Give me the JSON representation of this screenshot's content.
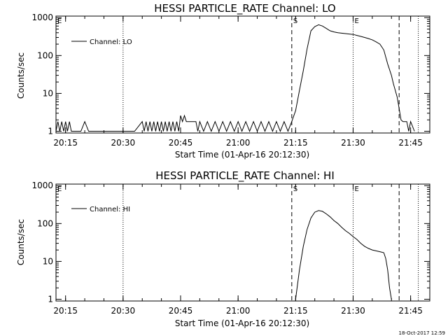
{
  "stamp": "18-Oct-2017 12:59",
  "chart_data": [
    {
      "type": "line",
      "title": "HESSI PARTICLE_RATE Channel: LO",
      "xlabel": "Start Time (01-Apr-16 20:12:30)",
      "ylabel": "Counts/sec",
      "yscale": "log",
      "ylim": [
        0.9,
        1100
      ],
      "xlim": [
        "20:12:30",
        "21:50:00"
      ],
      "x_ticks": [
        "20:15",
        "20:30",
        "20:45",
        "21:00",
        "21:15",
        "21:30",
        "21:45"
      ],
      "y_ticks": [
        "1",
        "10",
        "100",
        "1000"
      ],
      "legend": {
        "position": "top-left",
        "entries": [
          "Channel: LO"
        ]
      },
      "markers": {
        "dotted": [
          "20:30",
          "21:30",
          "21:47"
        ],
        "dashed": [
          "21:14",
          "21:42"
        ],
        "letters": [
          {
            "text": "E",
            "at": "20:12:30"
          },
          {
            "text": "S",
            "at": "21:14"
          },
          {
            "text": "E",
            "at": "21:30"
          }
        ]
      },
      "series": [
        {
          "name": "Channel: LO",
          "x": [
            "20:12:30",
            "20:13:00",
            "20:13:30",
            "20:14:00",
            "20:14:30",
            "20:15:00",
            "20:15:30",
            "20:16:00",
            "20:16:30",
            "20:17:00",
            "20:17:30",
            "20:18:00",
            "20:19:00",
            "20:20:00",
            "20:21:00",
            "20:21:30",
            "20:22:00",
            "20:23:00",
            "20:25:00",
            "20:29:00",
            "20:33:00",
            "20:35:00",
            "20:35:30",
            "20:36:00",
            "20:36:30",
            "20:37:00",
            "20:37:30",
            "20:38:00",
            "20:38:30",
            "20:39:00",
            "20:39:30",
            "20:40:00",
            "20:40:30",
            "20:41:00",
            "20:41:30",
            "20:42:00",
            "20:42:30",
            "20:43:00",
            "20:43:30",
            "20:44:00",
            "20:44:30",
            "20:45:00",
            "20:45:30",
            "20:46:00",
            "20:46:30",
            "20:47:00",
            "20:48:00",
            "20:48:30",
            "20:49:00",
            "20:49:30",
            "20:50:00",
            "20:51:00",
            "20:52:00",
            "20:53:00",
            "20:54:00",
            "20:55:00",
            "20:56:00",
            "20:57:00",
            "20:58:00",
            "20:59:00",
            "21:00:00",
            "21:01:00",
            "21:02:00",
            "21:03:00",
            "21:04:00",
            "21:05:00",
            "21:06:00",
            "21:07:00",
            "21:08:00",
            "21:09:00",
            "21:10:00",
            "21:11:00",
            "21:12:00",
            "21:13:00",
            "21:14:00",
            "21:15:00",
            "21:16:00",
            "21:17:00",
            "21:18:00",
            "21:19:00",
            "21:20:00",
            "21:21:00",
            "21:22:00",
            "21:23:00",
            "21:24:00",
            "21:25:00",
            "21:26:00",
            "21:27:00",
            "21:28:00",
            "21:29:00",
            "21:30:00",
            "21:31:00",
            "21:32:00",
            "21:33:00",
            "21:34:00",
            "21:35:00",
            "21:36:00",
            "21:37:00",
            "21:38:00",
            "21:39:00",
            "21:40:00",
            "21:40:30",
            "21:41:00",
            "21:41:30",
            "21:42:00",
            "21:42:30",
            "21:43:00",
            "21:43:30",
            "21:44:00",
            "21:44:30",
            "21:45:00",
            "21:46:00"
          ],
          "y": [
            1,
            1.8,
            1,
            1.8,
            1,
            1.8,
            1,
            1.8,
            1,
            1,
            1,
            1,
            1,
            1.8,
            1,
            1,
            1,
            1,
            1,
            1,
            1,
            1.8,
            1,
            1.8,
            1,
            1.8,
            1,
            1.8,
            1,
            1.8,
            1,
            1.8,
            1,
            1.8,
            1,
            1.8,
            1,
            1.8,
            1,
            1.8,
            1,
            2.6,
            1.8,
            2.6,
            1.8,
            1.8,
            1.8,
            1.8,
            1.8,
            1,
            1.8,
            1,
            1.8,
            1,
            1.8,
            1,
            1.8,
            1,
            1.8,
            1,
            1.8,
            1,
            1.8,
            1,
            1.8,
            1,
            1.8,
            1,
            1.8,
            1,
            1.8,
            1,
            1.8,
            1,
            1.8,
            3.5,
            12,
            40,
            150,
            450,
            580,
            650,
            600,
            520,
            450,
            420,
            400,
            390,
            380,
            370,
            360,
            340,
            320,
            300,
            280,
            260,
            230,
            200,
            140,
            60,
            30,
            18,
            12,
            8,
            4,
            2,
            1.8,
            1.8,
            1.8,
            1,
            1.8,
            1
          ]
        }
      ]
    },
    {
      "type": "line",
      "title": "HESSI PARTICLE_RATE Channel: HI",
      "xlabel": "Start Time (01-Apr-16 20:12:30)",
      "ylabel": "Counts/sec",
      "yscale": "log",
      "ylim": [
        0.9,
        1100
      ],
      "xlim": [
        "20:12:30",
        "21:50:00"
      ],
      "x_ticks": [
        "20:15",
        "20:30",
        "20:45",
        "21:00",
        "21:15",
        "21:30",
        "21:45"
      ],
      "y_ticks": [
        "1",
        "10",
        "100",
        "1000"
      ],
      "legend": {
        "position": "top-left",
        "entries": [
          "Channel: HI"
        ]
      },
      "markers": {
        "dotted": [
          "20:30",
          "21:30",
          "21:47"
        ],
        "dashed": [
          "21:14",
          "21:42"
        ],
        "letters": [
          {
            "text": "E",
            "at": "20:12:30"
          },
          {
            "text": "S",
            "at": "21:14"
          },
          {
            "text": "E",
            "at": "21:30"
          }
        ]
      },
      "series": [
        {
          "name": "Channel: HI",
          "x": [
            "21:15:00",
            "21:16:00",
            "21:17:00",
            "21:18:00",
            "21:19:00",
            "21:20:00",
            "21:21:00",
            "21:22:00",
            "21:23:00",
            "21:24:00",
            "21:25:00",
            "21:26:00",
            "21:27:00",
            "21:28:00",
            "21:29:00",
            "21:30:00",
            "21:31:00",
            "21:32:00",
            "21:33:00",
            "21:34:00",
            "21:35:00",
            "21:36:00",
            "21:37:00",
            "21:38:00",
            "21:38:30",
            "21:39:00",
            "21:39:30",
            "21:40:00"
          ],
          "y": [
            1,
            6,
            25,
            70,
            140,
            200,
            220,
            210,
            180,
            150,
            120,
            100,
            80,
            65,
            55,
            45,
            38,
            30,
            25,
            22,
            20,
            19,
            18,
            17,
            12,
            6,
            2,
            1
          ]
        }
      ]
    }
  ]
}
